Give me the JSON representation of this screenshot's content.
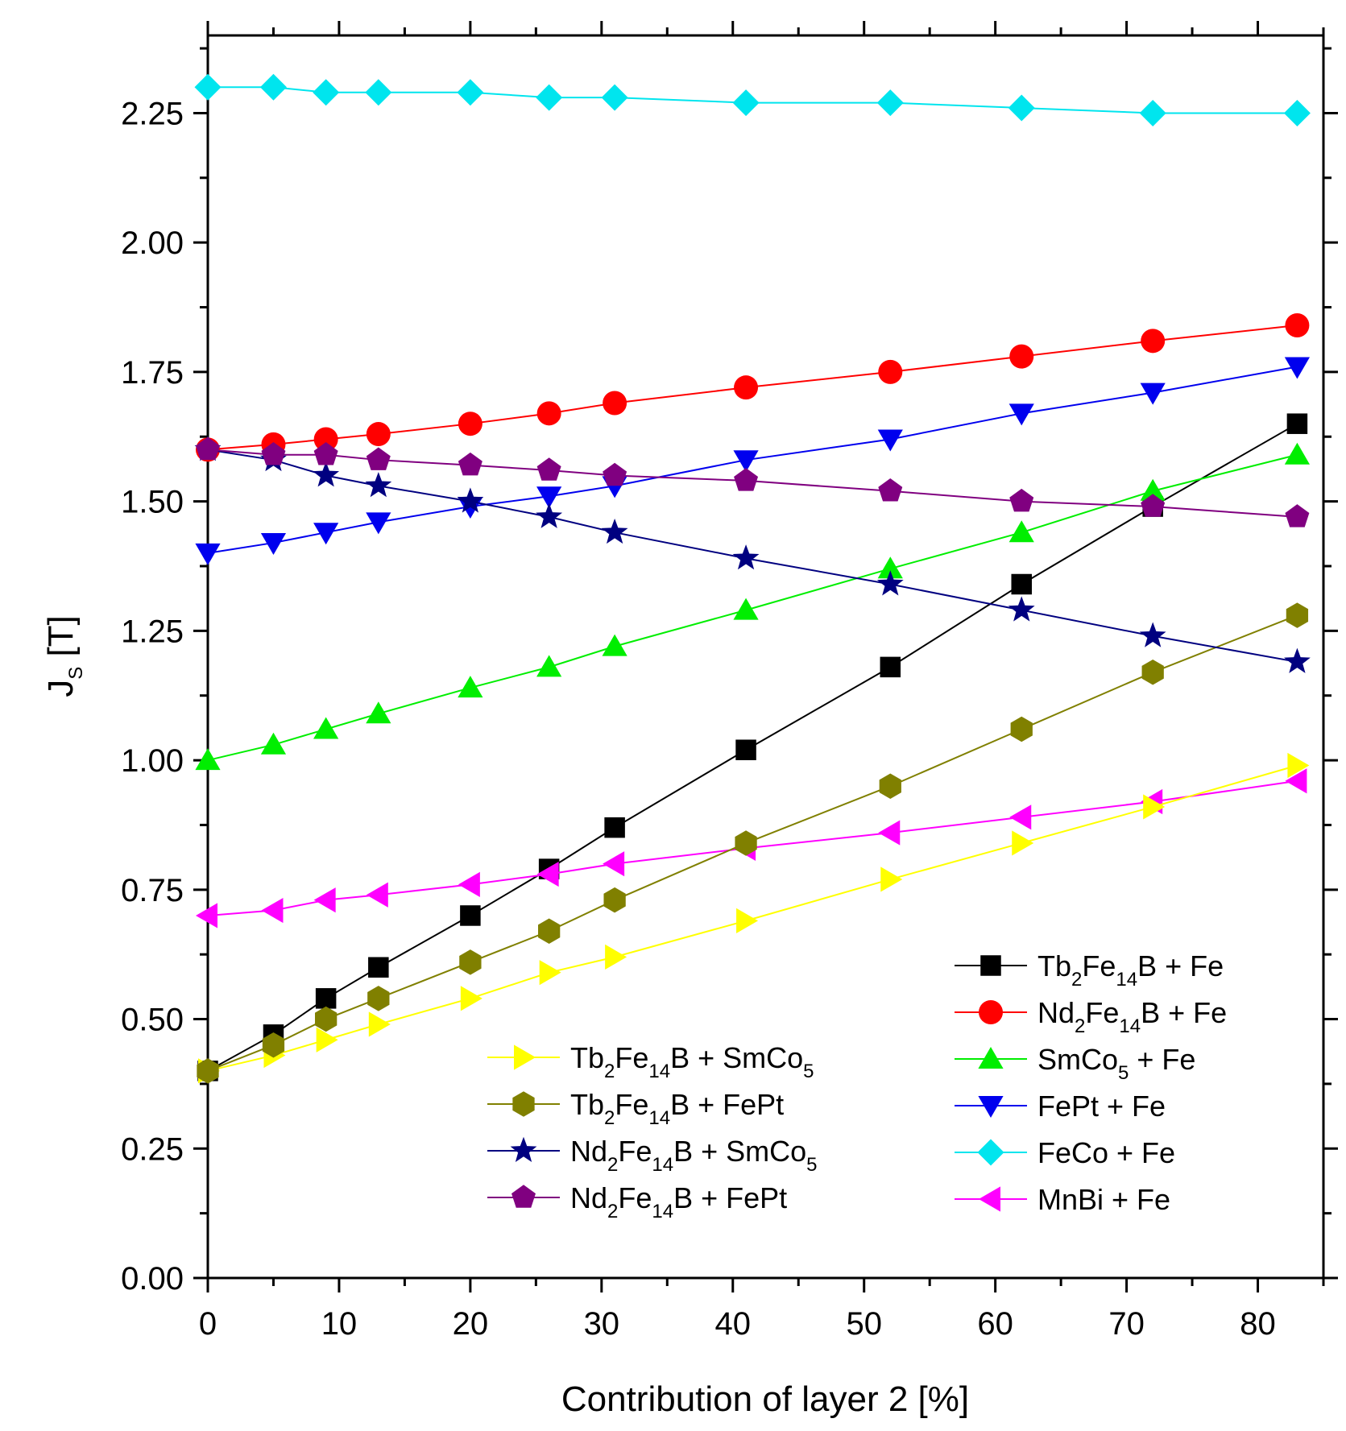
{
  "chart_data": {
    "type": "line",
    "xlabel": "Contribution of layer 2 [%]",
    "ylabel": {
      "main": "J",
      "sub": "S",
      "unit": " [T]"
    },
    "xlim": [
      0,
      85
    ],
    "ylim": [
      0,
      2.4
    ],
    "x_ticks": [
      0,
      10,
      20,
      30,
      40,
      50,
      60,
      70,
      80
    ],
    "y_ticks": [
      0.0,
      0.25,
      0.5,
      0.75,
      1.0,
      1.25,
      1.5,
      1.75,
      2.0,
      2.25
    ],
    "y_tick_labels": [
      "0.00",
      "0.25",
      "0.50",
      "0.75",
      "1.00",
      "1.25",
      "1.50",
      "1.75",
      "2.00",
      "2.25"
    ],
    "x": [
      0,
      5,
      9,
      13,
      20,
      26,
      31,
      41,
      52,
      62,
      72,
      83
    ],
    "grid": false,
    "legends": [
      {
        "placement": "bottom-right",
        "series": [
          0,
          1,
          2,
          3,
          4,
          5
        ]
      },
      {
        "placement": "bottom-center",
        "series": [
          6,
          7,
          8,
          9
        ]
      }
    ],
    "series": [
      {
        "label": [
          [
            "Tb",
            ""
          ],
          [
            "2",
            "sub"
          ],
          [
            "Fe",
            ""
          ],
          [
            "14",
            "sub"
          ],
          [
            "B + Fe",
            ""
          ]
        ],
        "color": "#000000",
        "marker": "square",
        "values": [
          0.4,
          0.47,
          0.54,
          0.6,
          0.7,
          0.79,
          0.87,
          1.02,
          1.18,
          1.34,
          1.49,
          1.65
        ]
      },
      {
        "label": [
          [
            "Nd",
            ""
          ],
          [
            "2",
            "sub"
          ],
          [
            "Fe",
            ""
          ],
          [
            "14",
            "sub"
          ],
          [
            "B + Fe",
            ""
          ]
        ],
        "color": "#ff0000",
        "marker": "circle",
        "values": [
          1.6,
          1.61,
          1.62,
          1.63,
          1.65,
          1.67,
          1.69,
          1.72,
          1.75,
          1.78,
          1.81,
          1.84
        ]
      },
      {
        "label": [
          [
            "SmCo",
            ""
          ],
          [
            "5",
            "sub"
          ],
          [
            " + Fe",
            ""
          ]
        ],
        "color": "#00ee00",
        "marker": "triangle-up",
        "values": [
          1.0,
          1.03,
          1.06,
          1.09,
          1.14,
          1.18,
          1.22,
          1.29,
          1.37,
          1.44,
          1.52,
          1.59
        ]
      },
      {
        "label": [
          [
            "FePt + Fe",
            ""
          ]
        ],
        "color": "#0000ee",
        "marker": "triangle-down",
        "values": [
          1.4,
          1.42,
          1.44,
          1.46,
          1.49,
          1.51,
          1.53,
          1.58,
          1.62,
          1.67,
          1.71,
          1.76
        ]
      },
      {
        "label": [
          [
            "FeCo + Fe",
            ""
          ]
        ],
        "color": "#00e5ee",
        "marker": "diamond",
        "values": [
          2.3,
          2.3,
          2.29,
          2.29,
          2.29,
          2.28,
          2.28,
          2.27,
          2.27,
          2.26,
          2.25,
          2.25
        ]
      },
      {
        "label": [
          [
            "MnBi + Fe",
            ""
          ]
        ],
        "color": "#ff00ff",
        "marker": "triangle-left",
        "values": [
          0.7,
          0.71,
          0.73,
          0.74,
          0.76,
          0.78,
          0.8,
          0.83,
          0.86,
          0.89,
          0.92,
          0.96
        ]
      },
      {
        "label": [
          [
            "Tb",
            ""
          ],
          [
            "2",
            "sub"
          ],
          [
            "Fe",
            ""
          ],
          [
            "14",
            "sub"
          ],
          [
            "B + SmCo",
            ""
          ],
          [
            "5",
            "sub"
          ]
        ],
        "color": "#ffff00",
        "marker": "triangle-right",
        "values": [
          0.4,
          0.43,
          0.46,
          0.49,
          0.54,
          0.59,
          0.62,
          0.69,
          0.77,
          0.84,
          0.91,
          0.99
        ]
      },
      {
        "label": [
          [
            "Tb",
            ""
          ],
          [
            "2",
            "sub"
          ],
          [
            "Fe",
            ""
          ],
          [
            "14",
            "sub"
          ],
          [
            "B + FePt",
            ""
          ]
        ],
        "color": "#808000",
        "marker": "hexagon",
        "values": [
          0.4,
          0.45,
          0.5,
          0.54,
          0.61,
          0.67,
          0.73,
          0.84,
          0.95,
          1.06,
          1.17,
          1.28
        ]
      },
      {
        "label": [
          [
            "Nd",
            ""
          ],
          [
            "2",
            "sub"
          ],
          [
            "Fe",
            ""
          ],
          [
            "14",
            "sub"
          ],
          [
            "B + SmCo",
            ""
          ],
          [
            "5",
            "sub"
          ]
        ],
        "color": "#000080",
        "marker": "star",
        "values": [
          1.6,
          1.58,
          1.55,
          1.53,
          1.5,
          1.47,
          1.44,
          1.39,
          1.34,
          1.29,
          1.24,
          1.19
        ]
      },
      {
        "label": [
          [
            "Nd",
            ""
          ],
          [
            "2",
            "sub"
          ],
          [
            "Fe",
            ""
          ],
          [
            "14",
            "sub"
          ],
          [
            "B + FePt",
            ""
          ]
        ],
        "color": "#800080",
        "marker": "pentagon",
        "values": [
          1.6,
          1.59,
          1.59,
          1.58,
          1.57,
          1.56,
          1.55,
          1.54,
          1.52,
          1.5,
          1.49,
          1.47
        ]
      }
    ]
  }
}
